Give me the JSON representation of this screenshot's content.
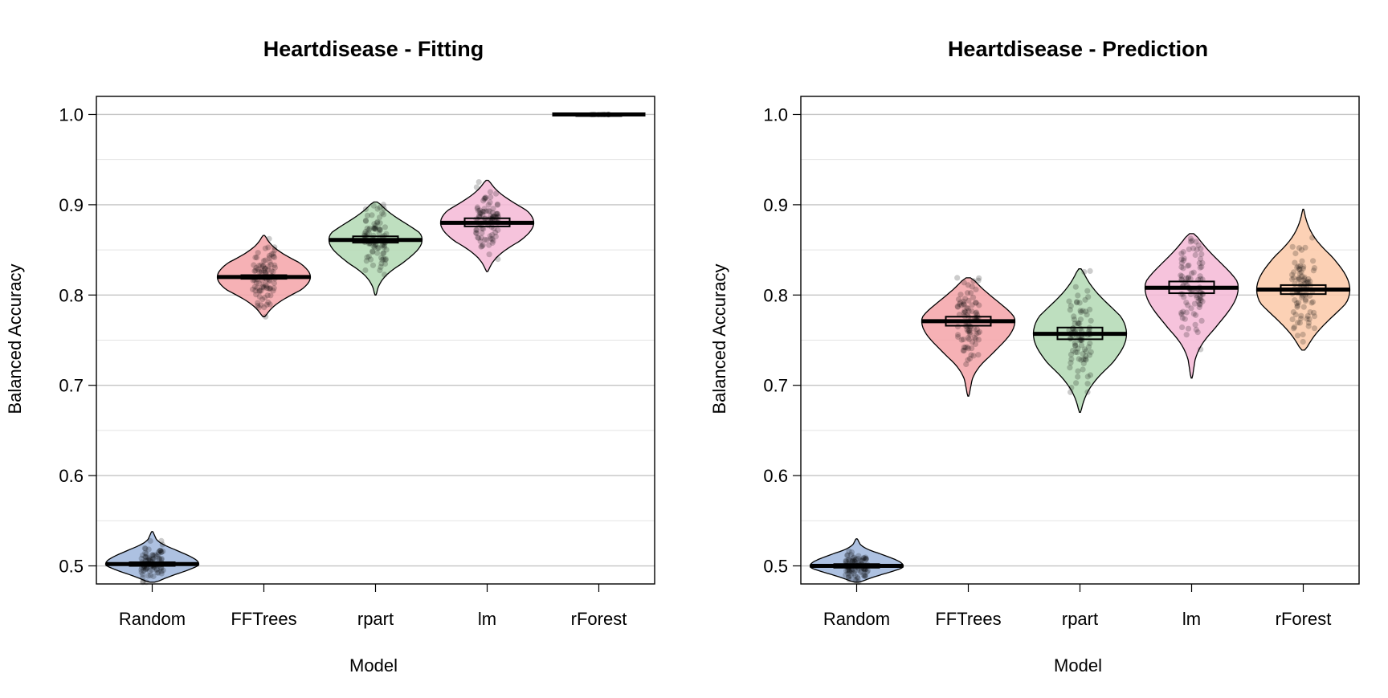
{
  "chart_data": [
    {
      "type": "pirate",
      "title": "Heartdisease - Fitting",
      "xlabel": "Model",
      "ylabel": "Balanced Accuracy",
      "ylim": [
        0.48,
        1.02
      ],
      "yticks": [
        "0.5",
        "0.6",
        "0.7",
        "0.8",
        "0.9",
        "1.0"
      ],
      "grid": true,
      "series": [
        {
          "category": "Random",
          "color": "#9fb6dc",
          "mean": 0.502,
          "ci": [
            0.5,
            0.504
          ],
          "range": [
            0.482,
            0.538
          ]
        },
        {
          "category": "FFTrees",
          "color": "#f4a3a8",
          "mean": 0.82,
          "ci": [
            0.818,
            0.822
          ],
          "range": [
            0.776,
            0.866
          ]
        },
        {
          "category": "rpart",
          "color": "#b3d9b4",
          "mean": 0.861,
          "ci": [
            0.858,
            0.865
          ],
          "range": [
            0.8,
            0.903
          ]
        },
        {
          "category": "lm",
          "color": "#f5b8d6",
          "mean": 0.88,
          "ci": [
            0.876,
            0.885
          ],
          "range": [
            0.826,
            0.927
          ]
        },
        {
          "category": "rForest",
          "color": "#fcc9a8",
          "mean": 1.0,
          "ci": [
            0.999,
            1.0
          ],
          "range": [
            0.999,
            1.0
          ]
        }
      ]
    },
    {
      "type": "pirate",
      "title": "Heartdisease - Prediction",
      "xlabel": "Model",
      "ylabel": "Balanced Accuracy",
      "ylim": [
        0.48,
        1.02
      ],
      "yticks": [
        "0.5",
        "0.6",
        "0.7",
        "0.8",
        "0.9",
        "1.0"
      ],
      "grid": true,
      "series": [
        {
          "category": "Random",
          "color": "#9fb6dc",
          "mean": 0.5,
          "ci": [
            0.498,
            0.502
          ],
          "range": [
            0.482,
            0.53
          ]
        },
        {
          "category": "FFTrees",
          "color": "#f4a3a8",
          "mean": 0.771,
          "ci": [
            0.766,
            0.776
          ],
          "range": [
            0.688,
            0.819
          ]
        },
        {
          "category": "rpart",
          "color": "#b3d9b4",
          "mean": 0.757,
          "ci": [
            0.751,
            0.764
          ],
          "range": [
            0.67,
            0.829
          ]
        },
        {
          "category": "lm",
          "color": "#f5b8d6",
          "mean": 0.808,
          "ci": [
            0.802,
            0.815
          ],
          "range": [
            0.708,
            0.868
          ]
        },
        {
          "category": "rForest",
          "color": "#fcc9a8",
          "mean": 0.806,
          "ci": [
            0.801,
            0.811
          ],
          "range": [
            0.739,
            0.895
          ]
        }
      ]
    }
  ]
}
